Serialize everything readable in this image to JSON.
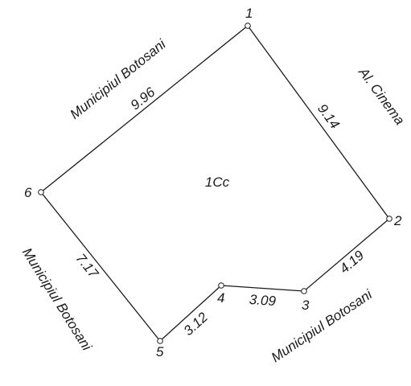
{
  "parcel_id": "1Cc",
  "vertices": [
    {
      "id": "1",
      "label": "1"
    },
    {
      "id": "2",
      "label": "2"
    },
    {
      "id": "3",
      "label": "3"
    },
    {
      "id": "4",
      "label": "4"
    },
    {
      "id": "5",
      "label": "5"
    },
    {
      "id": "6",
      "label": "6"
    }
  ],
  "edges": [
    {
      "from": "1",
      "to": "2",
      "length": "9.14"
    },
    {
      "from": "2",
      "to": "3",
      "length": "4.19"
    },
    {
      "from": "3",
      "to": "4",
      "length": "3.09"
    },
    {
      "from": "4",
      "to": "5",
      "length": "3.12"
    },
    {
      "from": "5",
      "to": "6",
      "length": "7.17"
    },
    {
      "from": "6",
      "to": "1",
      "length": "9.96"
    }
  ],
  "neighbours": {
    "north_west": "Municipiul Botosani",
    "north_east": "Al. Cinema",
    "west": "Municipiul Botosani",
    "south": "Municipiul Botosani"
  },
  "colors": {
    "line": "#1a1a1a",
    "background": "#ffffff"
  }
}
